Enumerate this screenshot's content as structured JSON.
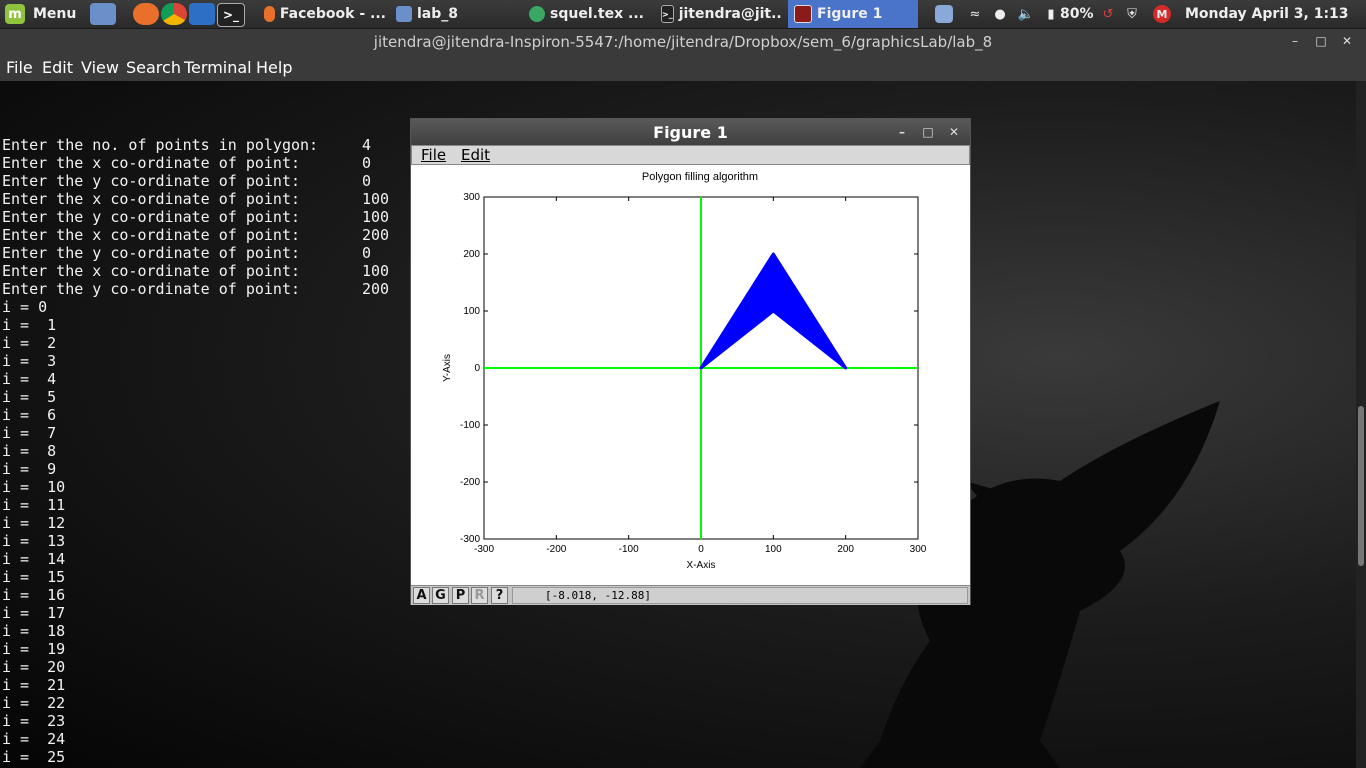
{
  "panel": {
    "menu_label": "Menu",
    "tasks": [
      {
        "label": "Facebook - ..."
      },
      {
        "label": "lab_8"
      },
      {
        "label": "squel.tex ..."
      },
      {
        "label": "jitendra@jit..."
      },
      {
        "label": "Figure 1"
      }
    ],
    "battery": "80%",
    "clock": "Monday April  3,  1:13"
  },
  "terminal": {
    "title": "jitendra@jitendra-Inspiron-5547:/home/jitendra/Dropbox/sem_6/graphicsLab/lab_8",
    "menu": [
      "File",
      "Edit",
      "View",
      "Search",
      "Terminal",
      "Help"
    ],
    "prompts": [
      {
        "text": "Enter the no. of points in polygon:",
        "value": "4"
      },
      {
        "text": "Enter the x co-ordinate of point:",
        "value": "0"
      },
      {
        "text": "Enter the y co-ordinate of point:",
        "value": "0"
      },
      {
        "text": "Enter the x co-ordinate of point:",
        "value": "100"
      },
      {
        "text": "Enter the y co-ordinate of point:",
        "value": "100"
      },
      {
        "text": "Enter the x co-ordinate of point:",
        "value": "200"
      },
      {
        "text": "Enter the y co-ordinate of point:",
        "value": "0"
      },
      {
        "text": "Enter the x co-ordinate of point:",
        "value": "100"
      },
      {
        "text": "Enter the y co-ordinate of point:",
        "value": "200"
      }
    ],
    "iterations": [
      "i = 0",
      "i =  1",
      "i =  2",
      "i =  3",
      "i =  4",
      "i =  5",
      "i =  6",
      "i =  7",
      "i =  8",
      "i =  9",
      "i =  10",
      "i =  11",
      "i =  12",
      "i =  13",
      "i =  14",
      "i =  15",
      "i =  16",
      "i =  17",
      "i =  18",
      "i =  19",
      "i =  20",
      "i =  21",
      "i =  22",
      "i =  23",
      "i =  24",
      "i =  25"
    ]
  },
  "figure": {
    "title": "Figure 1",
    "menu": [
      "File",
      "Edit"
    ],
    "status_buttons": [
      "A",
      "G",
      "P",
      "R",
      "?"
    ],
    "coords": "[-8.018, -12.88]"
  },
  "chart_data": {
    "type": "area",
    "title": "Polygon filling algorithm",
    "xlabel": "X-Axis",
    "ylabel": "Y-Axis",
    "xlim": [
      -300,
      300
    ],
    "ylim": [
      -300,
      300
    ],
    "xticks": [
      "-300",
      "-200",
      "-100",
      "0",
      "100",
      "200",
      "300"
    ],
    "yticks": [
      "300",
      "200",
      "100",
      "0",
      "-100",
      "-200",
      "-300"
    ],
    "polygon": [
      [
        0,
        0
      ],
      [
        100,
        100
      ],
      [
        200,
        0
      ],
      [
        100,
        200
      ]
    ],
    "axis_lines": {
      "x": 0,
      "y": 0
    },
    "colors": {
      "fill": "#0000ff",
      "axes": "#00ff00"
    }
  },
  "colors": {
    "active_task": "#4a74c9"
  }
}
